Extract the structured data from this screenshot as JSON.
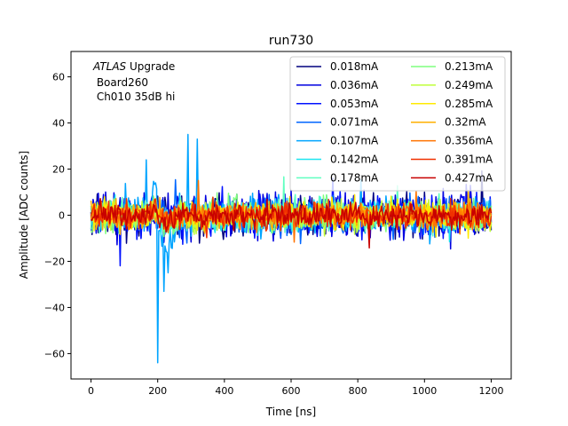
{
  "chart_data": {
    "type": "line",
    "title": "run730",
    "xlabel": "Time [ns]",
    "ylabel": "Amplitude [ADC counts]",
    "xlim": [
      -60,
      1260
    ],
    "ylim": [
      -71,
      71
    ],
    "xticks": [
      0,
      200,
      400,
      600,
      800,
      1000,
      1200
    ],
    "yticks": [
      -60,
      -40,
      -20,
      0,
      20,
      40,
      60
    ],
    "grid": false,
    "legend_placement": "top-right",
    "legend_columns": 2,
    "annotation": {
      "italic": "ATLAS",
      "line1_rest": " Upgrade",
      "line2": " Board260",
      "line3": " Ch010 35dB hi"
    },
    "x_range": [
      0,
      1200
    ],
    "x_step": 3.125,
    "series": [
      {
        "name": "0.018mA",
        "color": "#00007f",
        "noise": 8.5,
        "spike_amp": 6,
        "offset": 0
      },
      {
        "name": "0.036mA",
        "color": "#0000e0",
        "noise": 9.0,
        "spike_amp": 8,
        "offset": 0
      },
      {
        "name": "0.053mA",
        "color": "#0011ff",
        "noise": 8.5,
        "spike_amp": 8,
        "offset": 0
      },
      {
        "name": "0.071mA",
        "color": "#0066ff",
        "noise": 7.5,
        "spike_amp": 10,
        "offset": 0
      },
      {
        "name": "0.107mA",
        "color": "#00a4ff",
        "noise": 7.0,
        "spike_amp": 64,
        "offset": 0
      },
      {
        "name": "0.142mA",
        "color": "#1ee6f0",
        "noise": 6.0,
        "spike_amp": 12,
        "offset": 0
      },
      {
        "name": "0.178mA",
        "color": "#60ffc0",
        "noise": 6.0,
        "spike_amp": 12,
        "offset": 0
      },
      {
        "name": "0.213mA",
        "color": "#7fff7f",
        "noise": 6.5,
        "spike_amp": 14,
        "offset": 0
      },
      {
        "name": "0.249mA",
        "color": "#bfff3a",
        "noise": 6.0,
        "spike_amp": 12,
        "offset": 0
      },
      {
        "name": "0.285mA",
        "color": "#ffea00",
        "noise": 5.5,
        "spike_amp": 12,
        "offset": 0
      },
      {
        "name": "0.32mA",
        "color": "#ffb000",
        "noise": 5.5,
        "spike_amp": 12,
        "offset": 0
      },
      {
        "name": "0.356mA",
        "color": "#ff7300",
        "noise": 5.0,
        "spike_amp": 12,
        "offset": 0
      },
      {
        "name": "0.391mA",
        "color": "#f03000",
        "noise": 5.0,
        "spike_amp": 14,
        "offset": 0
      },
      {
        "name": "0.427mA",
        "color": "#c80000",
        "noise": 5.0,
        "spike_amp": 16,
        "offset": 0
      }
    ]
  }
}
